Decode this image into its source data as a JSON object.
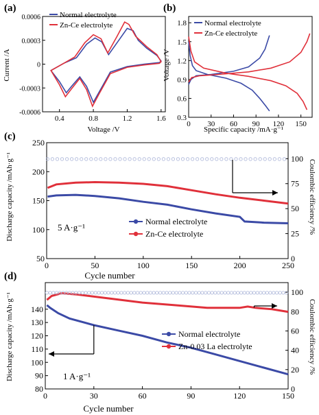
{
  "colors": {
    "normal": "#3b4aa6",
    "zn": "#e0303a",
    "ce": "#aab4d8",
    "axis": "#000000"
  },
  "panels": [
    {
      "label": "(a)"
    },
    {
      "label": "(b)"
    },
    {
      "label": "(c)"
    },
    {
      "label": "(d)"
    }
  ],
  "extra": {
    "c_rate": "5 A·g⁻¹",
    "d_rate": "1 A·g⁻¹"
  },
  "chart_data": [
    {
      "id": "a",
      "type": "line",
      "xlabel": "Voltage /V",
      "ylabel": "Current /A",
      "xlim": [
        0.2,
        1.65
      ],
      "ylim": [
        -0.0006,
        0.0006
      ],
      "xticks": [
        "0.4",
        "0.8",
        "1.2",
        "1.6"
      ],
      "yticks": [
        "0.0006",
        "0.0003",
        "0",
        "-0.0003",
        "-0.0006"
      ],
      "legend_position": "top-left",
      "series": [
        {
          "name": "Normal electrolyte",
          "color_key": "normal",
          "closed": true,
          "points": [
            [
              0.3,
              -8e-05
            ],
            [
              0.4,
              -0.00022
            ],
            [
              0.48,
              -0.00036
            ],
            [
              0.55,
              -0.00027
            ],
            [
              0.64,
              -0.00016
            ],
            [
              0.72,
              -0.00028
            ],
            [
              0.8,
              -0.00048
            ],
            [
              0.88,
              -0.00033
            ],
            [
              1.0,
              -0.0001
            ],
            [
              1.2,
              -3e-05
            ],
            [
              1.4,
              0.0
            ],
            [
              1.58,
              2e-05
            ],
            [
              1.6,
              4e-05
            ],
            [
              1.55,
              0.00011
            ],
            [
              1.43,
              0.0002
            ],
            [
              1.33,
              0.0003
            ],
            [
              1.27,
              0.00042
            ],
            [
              1.2,
              0.00045
            ],
            [
              1.1,
              0.0003
            ],
            [
              0.98,
              0.00012
            ],
            [
              0.9,
              0.00028
            ],
            [
              0.82,
              0.00033
            ],
            [
              0.72,
              0.00025
            ],
            [
              0.6,
              8e-05
            ],
            [
              0.45,
              1e-05
            ],
            [
              0.3,
              -8e-05
            ]
          ]
        },
        {
          "name": "Zn-Ce electrolyte",
          "color_key": "zn",
          "closed": true,
          "points": [
            [
              0.3,
              -8e-05
            ],
            [
              0.4,
              -0.00026
            ],
            [
              0.47,
              -0.00041
            ],
            [
              0.55,
              -0.0003
            ],
            [
              0.64,
              -0.00018
            ],
            [
              0.72,
              -0.00032
            ],
            [
              0.79,
              -0.00053
            ],
            [
              0.87,
              -0.00037
            ],
            [
              1.0,
              -0.00012
            ],
            [
              1.2,
              -4e-05
            ],
            [
              1.4,
              -1e-05
            ],
            [
              1.58,
              1e-05
            ],
            [
              1.6,
              3e-05
            ],
            [
              1.55,
              0.00012
            ],
            [
              1.43,
              0.00022
            ],
            [
              1.3,
              0.00035
            ],
            [
              1.22,
              0.0005
            ],
            [
              1.17,
              0.00053
            ],
            [
              1.08,
              0.00035
            ],
            [
              0.97,
              0.00014
            ],
            [
              0.89,
              0.00032
            ],
            [
              0.8,
              0.00037
            ],
            [
              0.7,
              0.00027
            ],
            [
              0.58,
              9e-05
            ],
            [
              0.45,
              1e-05
            ],
            [
              0.3,
              -8e-05
            ]
          ]
        }
      ]
    },
    {
      "id": "b",
      "type": "line",
      "xlabel": "Specific capacity /mA·g⁻¹",
      "ylabel": "Voltage /V",
      "xlim": [
        0,
        165
      ],
      "ylim": [
        0.3,
        1.9
      ],
      "xticks": [
        "0",
        "30",
        "60",
        "90",
        "120",
        "150"
      ],
      "yticks": [
        "1.8",
        "1.5",
        "1.2",
        "0.9",
        "0.6",
        "0.3"
      ],
      "legend_position": "top-left",
      "series": [
        {
          "name": "Normal electrolyte",
          "color_key": "normal",
          "branches": [
            [
              [
                0,
                1.5
              ],
              [
                2,
                1.28
              ],
              [
                5,
                1.12
              ],
              [
                10,
                1.04
              ],
              [
                25,
                0.98
              ],
              [
                50,
                0.92
              ],
              [
                70,
                0.84
              ],
              [
                85,
                0.73
              ],
              [
                95,
                0.6
              ],
              [
                103,
                0.48
              ],
              [
                108,
                0.4
              ]
            ],
            [
              [
                0,
                0.82
              ],
              [
                3,
                0.9
              ],
              [
                10,
                0.96
              ],
              [
                30,
                0.98
              ],
              [
                60,
                1.03
              ],
              [
                80,
                1.1
              ],
              [
                95,
                1.24
              ],
              [
                102,
                1.38
              ],
              [
                108,
                1.6
              ]
            ]
          ]
        },
        {
          "name": "Zn-Ce electrolyte",
          "color_key": "zn",
          "branches": [
            [
              [
                0,
                1.58
              ],
              [
                3,
                1.35
              ],
              [
                8,
                1.18
              ],
              [
                20,
                1.08
              ],
              [
                50,
                1.0
              ],
              [
                80,
                0.95
              ],
              [
                110,
                0.88
              ],
              [
                130,
                0.8
              ],
              [
                145,
                0.68
              ],
              [
                153,
                0.55
              ],
              [
                158,
                0.42
              ]
            ],
            [
              [
                0,
                0.86
              ],
              [
                4,
                0.93
              ],
              [
                15,
                0.96
              ],
              [
                40,
                0.98
              ],
              [
                80,
                1.02
              ],
              [
                110,
                1.08
              ],
              [
                135,
                1.18
              ],
              [
                150,
                1.33
              ],
              [
                158,
                1.5
              ],
              [
                162,
                1.63
              ]
            ]
          ]
        }
      ]
    },
    {
      "id": "c",
      "type": "line",
      "xlabel": "Cycle number",
      "ylabel": "Discharge capacity /mAh·g⁻¹",
      "y2label": "Coulombic efficiency /%",
      "xlim": [
        0,
        250
      ],
      "ylim": [
        50,
        250
      ],
      "y2lim": [
        0,
        116
      ],
      "xticks": [
        "0",
        "50",
        "100",
        "150",
        "200",
        "250"
      ],
      "yticks": [
        "250",
        "200",
        "150",
        "100",
        "50"
      ],
      "y2ticks": [
        "100",
        "75",
        "50",
        "25",
        "0"
      ],
      "legend_position": "lower-center",
      "series": [
        {
          "name": "Normal electrolyte",
          "color_key": "normal",
          "axis": "left",
          "points": [
            [
              1,
              157
            ],
            [
              10,
              159
            ],
            [
              30,
              160
            ],
            [
              50,
              158
            ],
            [
              75,
              154
            ],
            [
              100,
              148
            ],
            [
              125,
              143
            ],
            [
              150,
              135
            ],
            [
              175,
              128
            ],
            [
              200,
              122
            ],
            [
              205,
              114
            ],
            [
              225,
              112
            ],
            [
              250,
              111
            ]
          ]
        },
        {
          "name": "Zn-Ce electrolyte",
          "color_key": "zn",
          "axis": "left",
          "points": [
            [
              1,
              172
            ],
            [
              10,
              178
            ],
            [
              30,
              181
            ],
            [
              50,
              182
            ],
            [
              75,
              181
            ],
            [
              100,
              179
            ],
            [
              125,
              175
            ],
            [
              150,
              168
            ],
            [
              175,
              161
            ],
            [
              200,
              155
            ],
            [
              225,
              150
            ],
            [
              250,
              145
            ]
          ]
        },
        {
          "name": "",
          "color_key": "ce",
          "axis": "right",
          "marker": "circle",
          "stride": 5,
          "range": [
            1,
            250
          ],
          "value": 99.6
        }
      ]
    },
    {
      "id": "d",
      "type": "line",
      "xlabel": "Cycle number",
      "ylabel": "Discharge capacity /mAh·g⁻¹",
      "y2label": "Coulombic efficiency /%",
      "xlim": [
        0,
        150
      ],
      "ylim": [
        80,
        160
      ],
      "y2lim": [
        0,
        110
      ],
      "xticks": [
        "0",
        "30",
        "60",
        "90",
        "120",
        "150"
      ],
      "yticks": [
        "140",
        "130",
        "120",
        "110",
        "100",
        "90",
        "80"
      ],
      "y2ticks": [
        "100",
        "80",
        "60",
        "40",
        "20",
        "0"
      ],
      "legend_position": "lower-right",
      "series": [
        {
          "name": "Normal electrolyte",
          "color_key": "normal",
          "axis": "left",
          "points": [
            [
              1,
              143
            ],
            [
              3,
              141
            ],
            [
              8,
              137
            ],
            [
              15,
              133
            ],
            [
              30,
              128
            ],
            [
              45,
              124
            ],
            [
              60,
              120
            ],
            [
              75,
              115
            ],
            [
              90,
              111
            ],
            [
              105,
              106
            ],
            [
              120,
              101
            ],
            [
              135,
              96
            ],
            [
              150,
              91
            ]
          ]
        },
        {
          "name": "Zn-0.03 La electrolyte",
          "color_key": "zn",
          "axis": "left",
          "points": [
            [
              1,
              147
            ],
            [
              4,
              150
            ],
            [
              10,
              152
            ],
            [
              20,
              151
            ],
            [
              40,
              148
            ],
            [
              60,
              145
            ],
            [
              80,
              143
            ],
            [
              100,
              141
            ],
            [
              120,
              141
            ],
            [
              125,
              142
            ],
            [
              130,
              141
            ],
            [
              140,
              140
            ],
            [
              150,
              138
            ]
          ]
        },
        {
          "name": "",
          "color_key": "ce",
          "axis": "right",
          "marker": "circle",
          "stride": 2,
          "range": [
            1,
            150
          ],
          "value": 99.5
        }
      ]
    }
  ]
}
